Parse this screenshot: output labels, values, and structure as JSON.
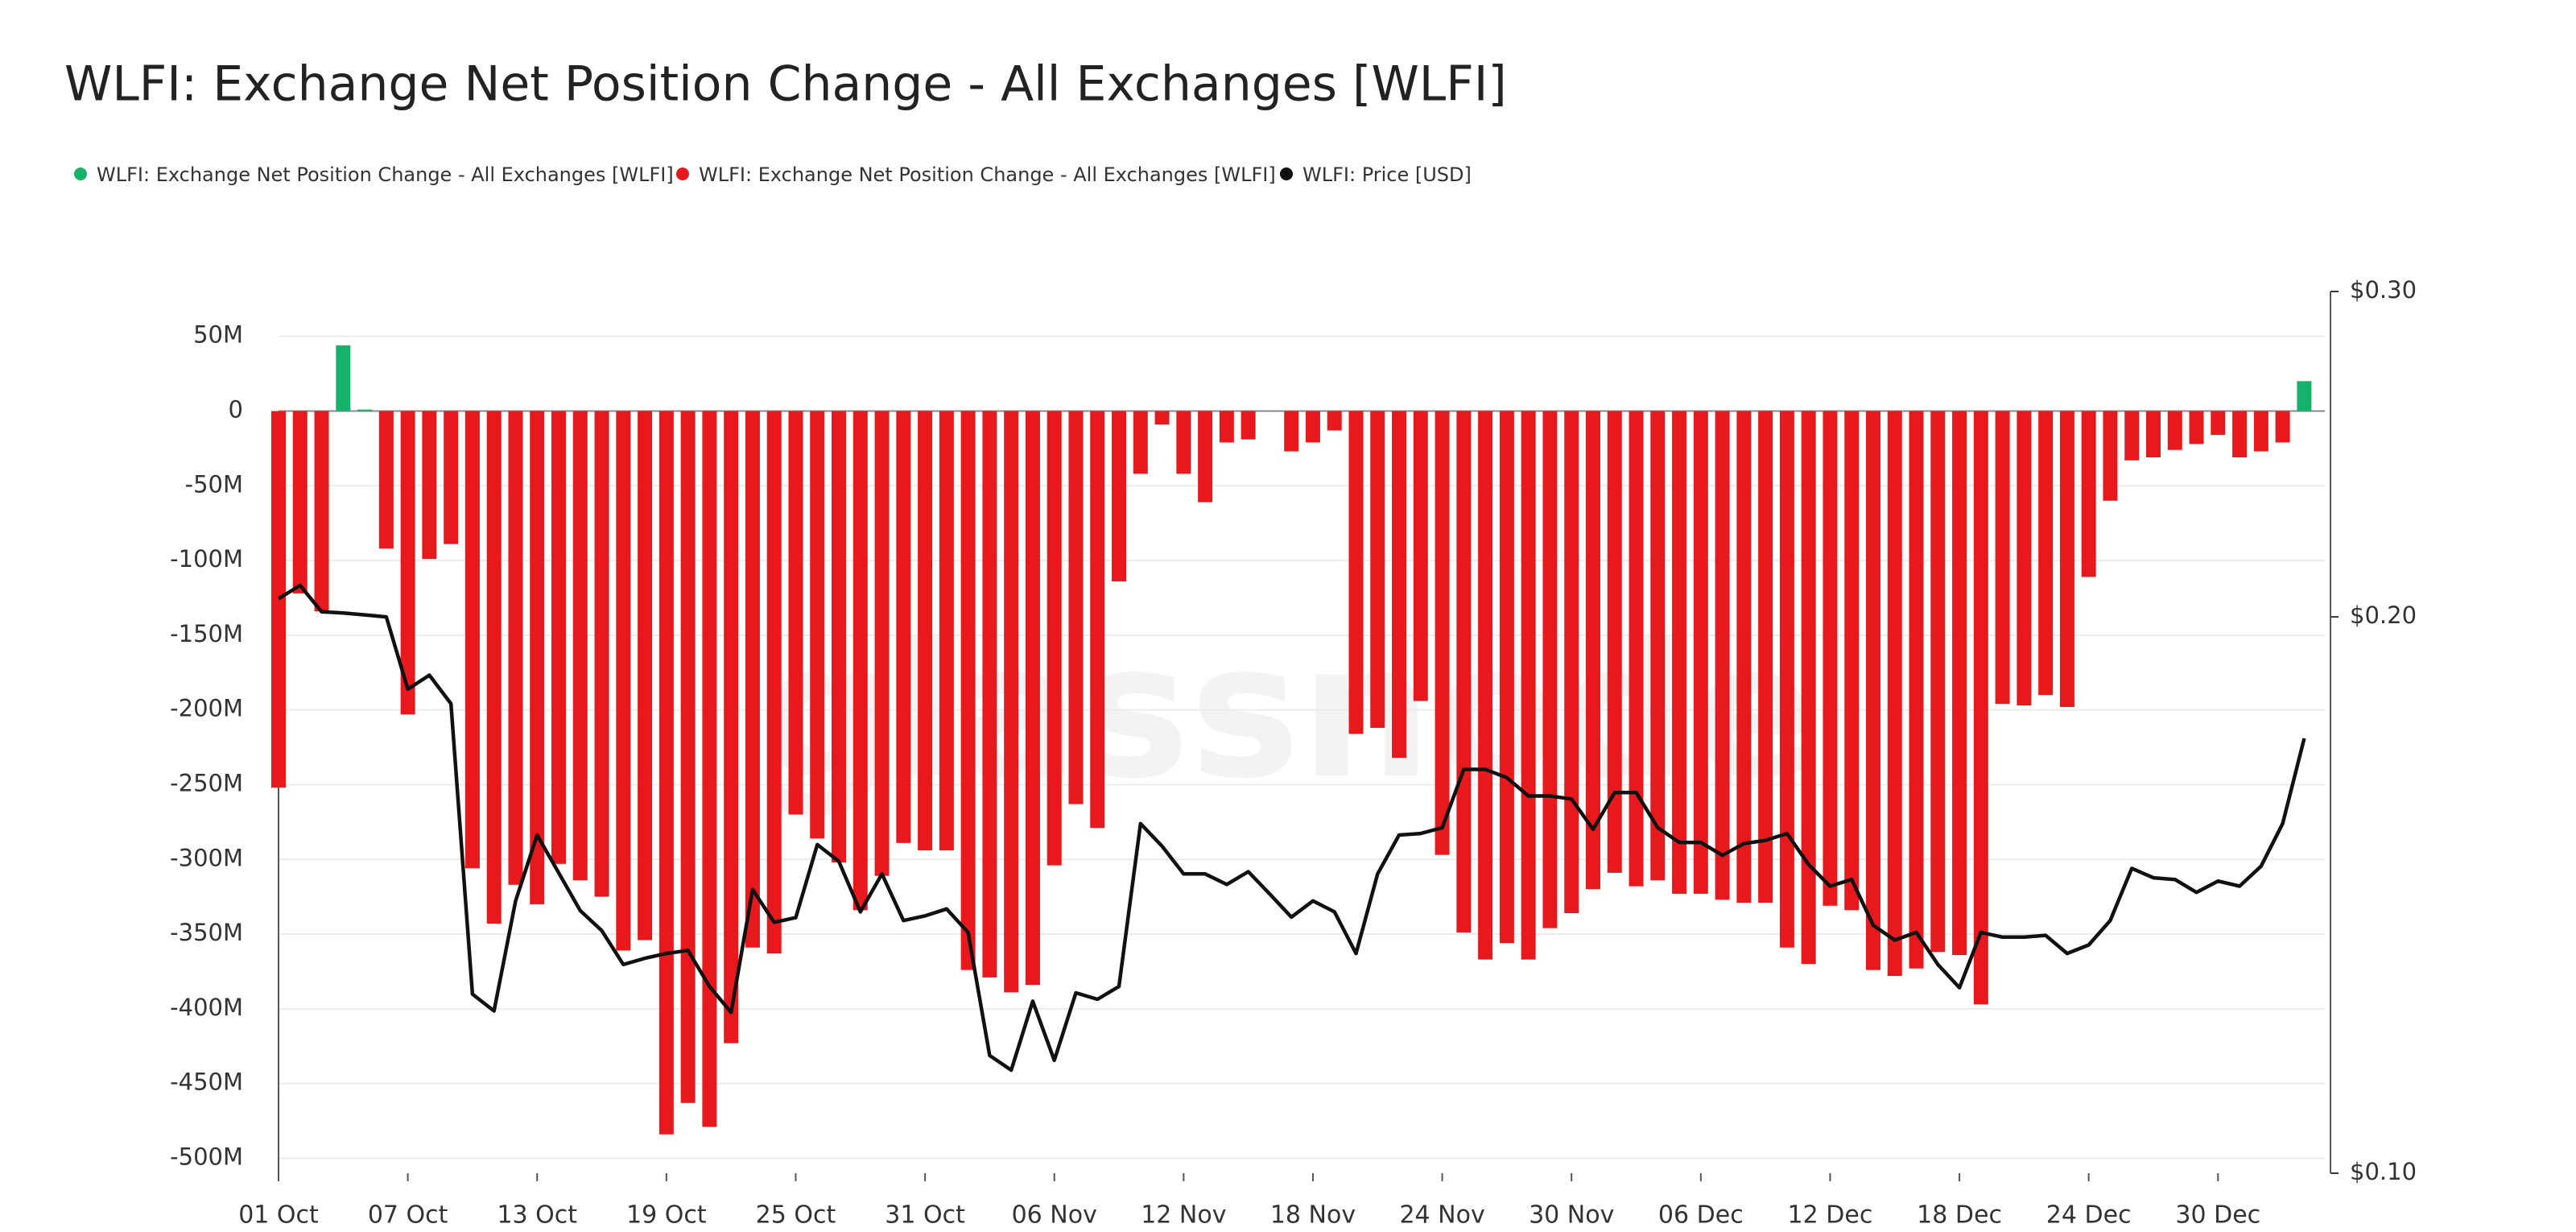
{
  "chart_data": {
    "type": "bar",
    "title": "WLFI: Exchange Net Position Change - All Exchanges [WLFI]",
    "watermark": "glassnode",
    "categories": [
      "01 Oct",
      null,
      null,
      null,
      null,
      null,
      "07 Oct",
      null,
      null,
      null,
      null,
      null,
      "13 Oct",
      null,
      null,
      null,
      null,
      null,
      "19 Oct",
      null,
      null,
      null,
      null,
      null,
      "25 Oct",
      null,
      null,
      null,
      null,
      null,
      "31 Oct",
      null,
      null,
      null,
      null,
      null,
      "06 Nov",
      null,
      null,
      null,
      null,
      null,
      "12 Nov",
      null,
      null,
      null,
      null,
      null,
      "18 Nov",
      null,
      null,
      null,
      null,
      null,
      "24 Nov",
      null,
      null,
      null,
      null,
      null,
      "30 Nov",
      null,
      null,
      null,
      null,
      null,
      "06 Dec",
      null,
      null,
      null,
      null,
      null,
      "12 Dec",
      null,
      null,
      null,
      null,
      null,
      "18 Dec",
      null,
      null,
      null,
      null,
      null,
      "24 Dec",
      null,
      null,
      null,
      null,
      null,
      "30 Dec",
      null,
      null,
      null,
      null
    ],
    "series": [
      {
        "name": "WLFI: Exchange Net Position Change - All Exchanges [WLFI]",
        "color": "#17b26a",
        "values": [
          null,
          null,
          null,
          44,
          1,
          null,
          null,
          null,
          null,
          null,
          null,
          null,
          null,
          null,
          null,
          null,
          null,
          null,
          null,
          null,
          null,
          null,
          null,
          null,
          null,
          null,
          null,
          null,
          null,
          null,
          null,
          null,
          null,
          null,
          null,
          null,
          null,
          null,
          null,
          null,
          null,
          null,
          null,
          null,
          null,
          null,
          null,
          null,
          null,
          null,
          null,
          null,
          null,
          null,
          null,
          null,
          null,
          null,
          null,
          null,
          null,
          null,
          null,
          null,
          null,
          null,
          null,
          null,
          null,
          null,
          null,
          null,
          null,
          null,
          null,
          null,
          null,
          null,
          null,
          null,
          null,
          null,
          null,
          null,
          null,
          null,
          null,
          null,
          null,
          null,
          null,
          null,
          null,
          null,
          20
        ]
      },
      {
        "name": "WLFI: Exchange Net Position Change - All Exchanges [WLFI]",
        "color": "#e8191c",
        "values": [
          -252,
          -122,
          -134,
          null,
          null,
          -92,
          -203,
          -99,
          -89,
          -306,
          -343,
          -317,
          -330,
          -303,
          -314,
          -325,
          -361,
          -354,
          -484,
          -463,
          -479,
          -423,
          -359,
          -363,
          -270,
          -286,
          -302,
          -334,
          -311,
          -289,
          -294,
          -294,
          -374,
          -379,
          -389,
          -384,
          -304,
          -263,
          -279,
          -114,
          -42,
          -9,
          -42,
          -61,
          -21,
          -19,
          null,
          -27,
          -21,
          -13,
          -216,
          -212,
          -232,
          -194,
          -297,
          -349,
          -367,
          -356,
          -367,
          -346,
          -336,
          -320,
          -309,
          -318,
          -314,
          -323,
          -323,
          -327,
          -329,
          -329,
          -359,
          -370,
          -331,
          -334,
          -374,
          -378,
          -373,
          -362,
          -364,
          -397,
          -196,
          -197,
          -190,
          -198,
          -111,
          -60,
          -33,
          -31,
          -26,
          -22,
          -16,
          -31,
          -27,
          -21,
          null
        ]
      },
      {
        "name": "WLFI: Price [USD]",
        "color": "#111111",
        "type": "line",
        "axis": "y2",
        "values": [
          0.2046,
          0.208,
          0.2013,
          0.201,
          0.2005,
          0.2,
          0.1828,
          0.186,
          0.1795,
          0.125,
          0.1224,
          0.1404,
          0.1524,
          0.1454,
          0.1387,
          0.1353,
          0.1297,
          0.1307,
          0.1315,
          0.132,
          0.1262,
          0.1222,
          0.1424,
          0.1367,
          0.1375,
          0.1506,
          0.1475,
          0.1385,
          0.1452,
          0.137,
          0.1378,
          0.139,
          0.135,
          0.1158,
          0.1137,
          0.1239,
          0.1151,
          0.1252,
          0.1242,
          0.1262,
          0.1546,
          0.1503,
          0.1452,
          0.1452,
          0.1433,
          0.1456,
          0.1416,
          0.1376,
          0.1404,
          0.1385,
          0.1315,
          0.1452,
          0.1524,
          0.1527,
          0.1538,
          0.1654,
          0.1654,
          0.1637,
          0.16,
          0.16,
          0.1594,
          0.1535,
          0.1607,
          0.1607,
          0.1538,
          0.151,
          0.151,
          0.1486,
          0.1508,
          0.1514,
          0.1527,
          0.1469,
          0.143,
          0.1442,
          0.1362,
          0.1337,
          0.135,
          0.1297,
          0.126,
          0.135,
          0.1342,
          0.1342,
          0.1345,
          0.1315,
          0.1329,
          0.137,
          0.1462,
          0.1445,
          0.1442,
          0.1419,
          0.1439,
          0.143,
          0.1466,
          0.1546,
          0.1719
        ]
      }
    ],
    "ylim": [
      -510,
      80
    ],
    "yticks": [
      {
        "value": 50,
        "label": "50M"
      },
      0,
      {
        "value": -50,
        "label": "-50M"
      },
      {
        "value": -100,
        "label": "-100M"
      },
      {
        "value": -150,
        "label": "-150M"
      },
      {
        "value": -200,
        "label": "-200M"
      },
      {
        "value": -250,
        "label": "-250M"
      },
      {
        "value": -300,
        "label": "-300M"
      },
      {
        "value": -350,
        "label": "-350M"
      },
      {
        "value": -400,
        "label": "-400M"
      },
      {
        "value": -450,
        "label": "-450M"
      },
      {
        "value": -500,
        "label": "-500M"
      }
    ],
    "y2lim": [
      0.1,
      0.3
    ],
    "y2ticks": [
      {
        "value": 0.3,
        "label": "$0.30"
      },
      {
        "value": 0.2,
        "label": "$0.20"
      },
      {
        "value": 0.1,
        "label": "$0.10"
      }
    ],
    "y2scale": "log",
    "grid": true
  }
}
